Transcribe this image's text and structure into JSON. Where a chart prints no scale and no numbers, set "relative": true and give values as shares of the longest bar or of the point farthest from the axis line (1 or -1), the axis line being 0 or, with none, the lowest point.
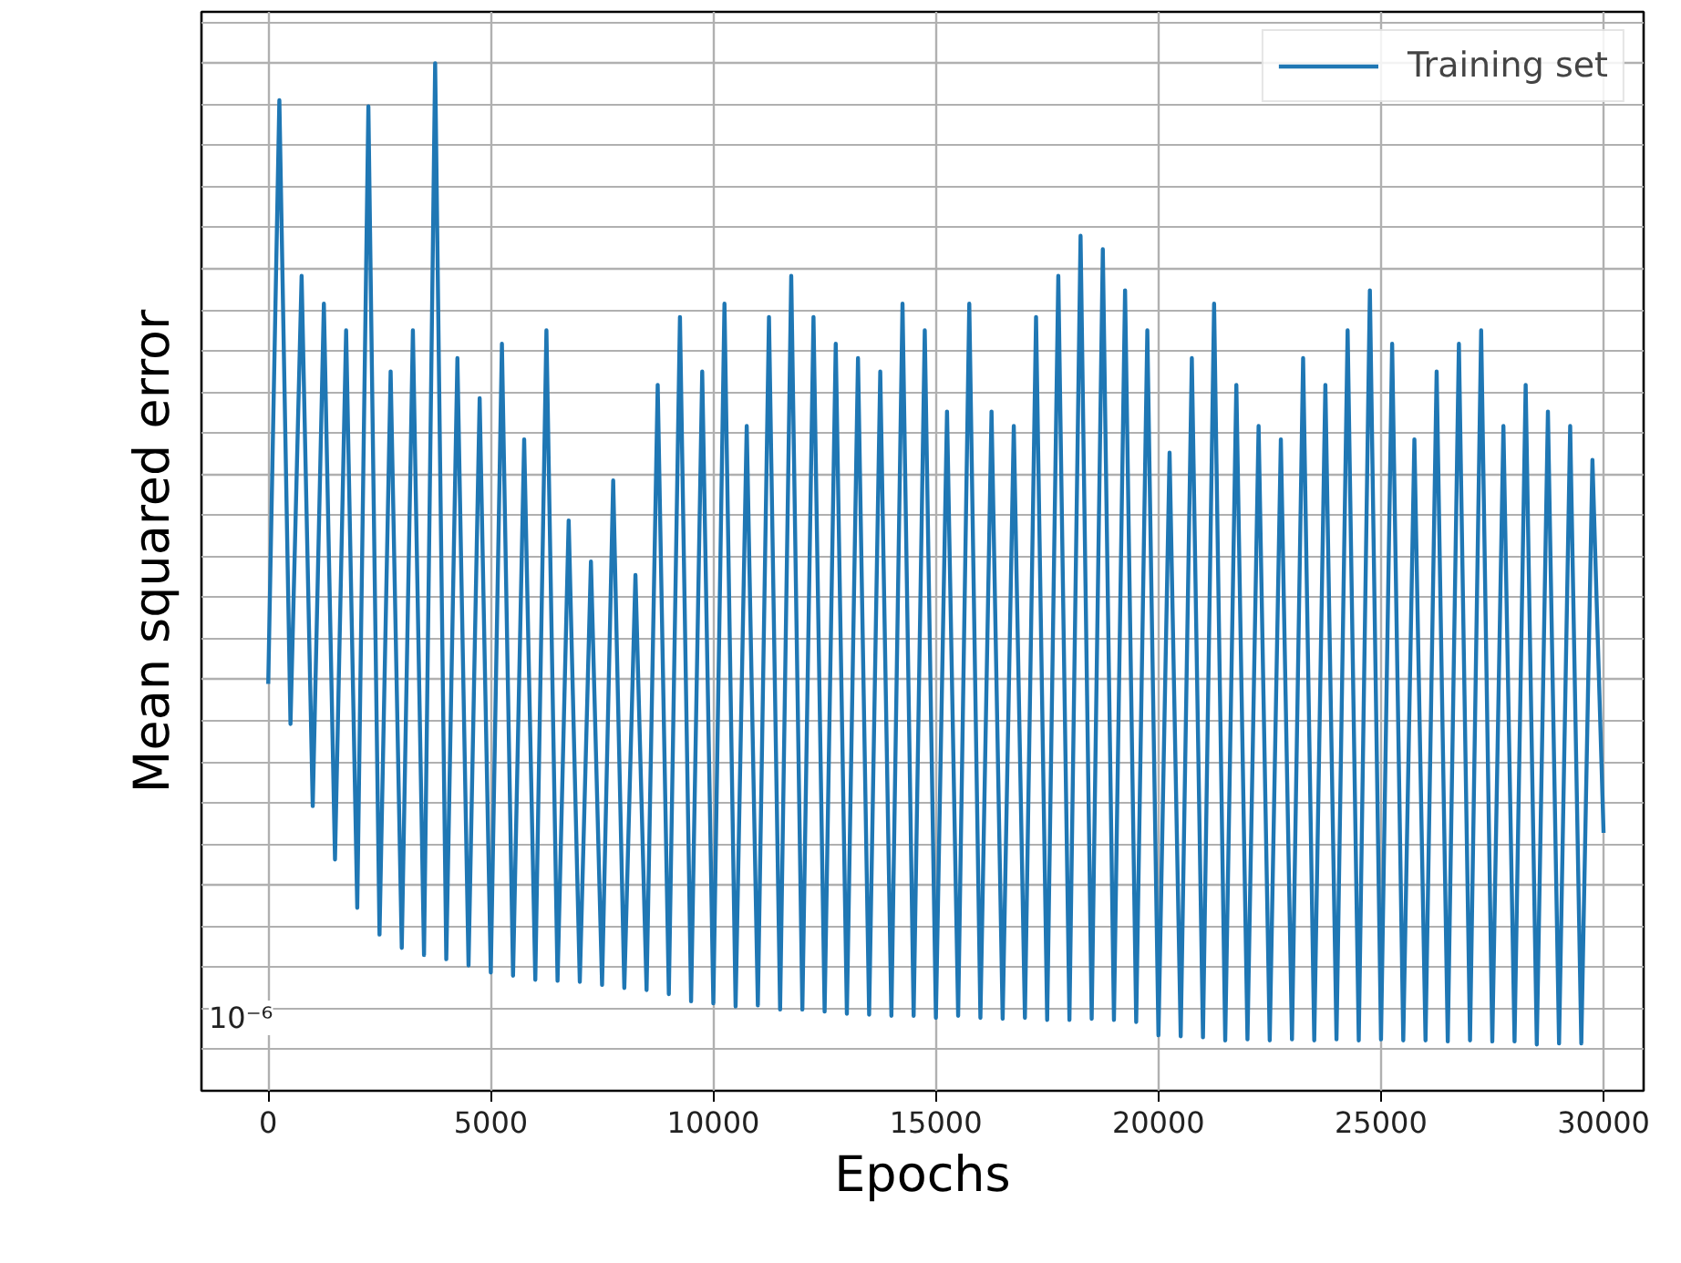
{
  "chart_data": {
    "type": "line",
    "xlabel": "Epochs",
    "ylabel": "Mean squared error",
    "annotations": [
      "10⁻⁶"
    ],
    "x": [
      0,
      250,
      500,
      750,
      1000,
      1250,
      1500,
      1750,
      2000,
      2250,
      2500,
      2750,
      3000,
      3250,
      3500,
      3750,
      4000,
      4250,
      4500,
      4750,
      5000,
      5250,
      5500,
      5750,
      6000,
      6250,
      6500,
      6750,
      7000,
      7250,
      7500,
      7750,
      8000,
      8250,
      8500,
      8750,
      9000,
      9250,
      9500,
      9750,
      10000,
      10250,
      10500,
      10750,
      11000,
      11250,
      11500,
      11750,
      12000,
      12250,
      12500,
      12750,
      13000,
      13250,
      13500,
      13750,
      14000,
      14250,
      14500,
      14750,
      15000,
      15250,
      15500,
      15750,
      16000,
      16250,
      16500,
      16750,
      17000,
      17250,
      17500,
      17750,
      18000,
      18250,
      18500,
      18750,
      19000,
      19250,
      19500,
      19750,
      20000,
      20250,
      20500,
      20750,
      21000,
      21250,
      21500,
      21750,
      22000,
      22250,
      22500,
      22750,
      23000,
      23250,
      23500,
      23750,
      24000,
      24250,
      24500,
      24750,
      25000,
      25250,
      25500,
      25750,
      26000,
      26250,
      26500,
      26750,
      27000,
      27250,
      27500,
      27750,
      28000,
      28250,
      28500,
      28750,
      29000,
      29250,
      29500,
      29750,
      30000
    ],
    "series": [
      {
        "name": "Training set",
        "color": "#1f77b4",
        "values": [
          0.396,
          0.964,
          0.357,
          0.793,
          0.277,
          0.766,
          0.225,
          0.74,
          0.178,
          0.958,
          0.152,
          0.7,
          0.139,
          0.74,
          0.132,
          1,
          0.128,
          0.713,
          0.122,
          0.674,
          0.115,
          0.727,
          0.112,
          0.634,
          0.108,
          0.74,
          0.107,
          0.555,
          0.106,
          0.515,
          0.103,
          0.594,
          0.1,
          0.502,
          0.098,
          0.687,
          0.094,
          0.753,
          0.087,
          0.7,
          0.085,
          0.766,
          0.082,
          0.647,
          0.083,
          0.753,
          0.079,
          0.793,
          0.079,
          0.753,
          0.077,
          0.727,
          0.075,
          0.713,
          0.074,
          0.7,
          0.073,
          0.766,
          0.073,
          0.74,
          0.071,
          0.661,
          0.073,
          0.766,
          0.071,
          0.661,
          0.07,
          0.647,
          0.071,
          0.753,
          0.069,
          0.793,
          0.069,
          0.832,
          0.07,
          0.819,
          0.069,
          0.779,
          0.067,
          0.74,
          0.054,
          0.621,
          0.053,
          0.713,
          0.052,
          0.766,
          0.049,
          0.687,
          0.05,
          0.647,
          0.049,
          0.634,
          0.05,
          0.713,
          0.049,
          0.687,
          0.05,
          0.74,
          0.049,
          0.779,
          0.05,
          0.727,
          0.049,
          0.634,
          0.049,
          0.7,
          0.048,
          0.727,
          0.049,
          0.74,
          0.048,
          0.647,
          0.048,
          0.687,
          0.045,
          0.661,
          0.046,
          0.647,
          0.046,
          0.614,
          0.251
        ]
      }
    ],
    "relative": true,
    "xlim": [
      -1500,
      30900
    ],
    "xticks": [
      0,
      5000,
      10000,
      15000,
      20000,
      25000,
      30000
    ],
    "grid": true,
    "legend": "top right",
    "line_style": "solid"
  }
}
